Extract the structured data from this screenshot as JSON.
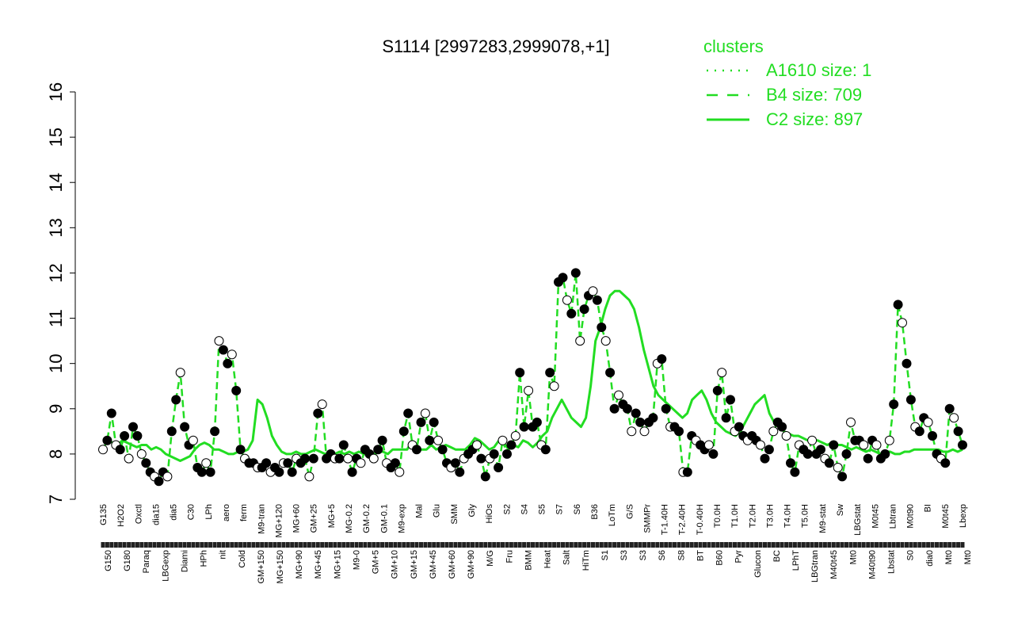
{
  "chart_data": {
    "type": "line",
    "title": "S1114 [2997283,2999078,+1]",
    "xlabel": "",
    "ylabel": "",
    "ylim": [
      7,
      16
    ],
    "yticks": [
      7,
      8,
      9,
      10,
      11,
      12,
      13,
      14,
      15,
      16
    ],
    "legend": {
      "title": "clusters",
      "placement": "top-right",
      "entries": [
        {
          "label": "A1610 size: 1",
          "style": "dotted"
        },
        {
          "label": "B4 size: 709",
          "style": "dashed"
        },
        {
          "label": "C2 size: 897",
          "style": "solid"
        }
      ]
    },
    "x_tick_labels_upper": [
      "G135",
      "H2O2",
      "Oxctl",
      "dia15",
      "dia5",
      "C30",
      "LPh",
      "aero",
      "ferm",
      "M9-tran",
      "MG+120",
      "MG+60",
      "GM+25",
      "MG+5",
      "MG-0.2",
      "GM-0.2",
      "GM-0.1",
      "M9-exp",
      "Mal",
      "Glu",
      "SMM",
      "Gly",
      "HiOs",
      "S2",
      "S4",
      "S5",
      "S7",
      "S6",
      "B36",
      "LoTm",
      "G/S",
      "SMMPr",
      "T-1.40H",
      "T-2.40H",
      "T-0.40H",
      "T0.0H",
      "T1.0H",
      "T2.0H",
      "T3.0H",
      "T4.0H",
      "T5.0H",
      "M9-stat",
      "Sw",
      "LBGstat",
      "M0t45",
      "Lbtran",
      "M0t90",
      "BI",
      "M0t45",
      "Lbexp"
    ],
    "x_tick_labels_lower": [
      "G150",
      "G180",
      "Paraq",
      "LBGexp",
      "Diami",
      "HPh",
      "nit",
      "Cold",
      "GM+150",
      "MG+150",
      "MG+90",
      "MG+45",
      "MG+15",
      "M9-0",
      "GM+5",
      "GM+10",
      "GM+15",
      "GM+45",
      "GM+60",
      "GM+90",
      "M/G",
      "Fru",
      "BMM",
      "Heat",
      "Salt",
      "HiTm",
      "S1",
      "S3",
      "S3",
      "S6",
      "S8",
      "BT",
      "B60",
      "Pyr",
      "Glucon",
      "BC",
      "LPhT",
      "LBGtran",
      "M40t45",
      "Mt0",
      "M40t90",
      "Lbstat",
      "S0",
      "dia0",
      "Mt0",
      "Mt0"
    ],
    "series": [
      {
        "name": "C2 size: 897",
        "style": "solid",
        "color": "#22dd22",
        "values": [
          8.3,
          8.3,
          8.25,
          8.2,
          8.3,
          8.25,
          8.2,
          8.15,
          8.2,
          8.2,
          8.1,
          8.15,
          8.1,
          8.0,
          7.95,
          7.9,
          7.85,
          7.9,
          7.95,
          8.1,
          8.2,
          8.25,
          8.2,
          8.1,
          8.1,
          8.05,
          8.0,
          8.0,
          8.05,
          8.05,
          8.1,
          8.3,
          9.2,
          9.1,
          8.8,
          8.4,
          8.2,
          8.05,
          8.0,
          8.0,
          8.05,
          8.0,
          8.0,
          8.05,
          8.1,
          8.05,
          8.0,
          8.05,
          8.0,
          8.05,
          8.0,
          8.05,
          8.0,
          8.05,
          8.0,
          8.0,
          8.0,
          8.05,
          8.05,
          8.0,
          8.1,
          8.1,
          8.1,
          8.1,
          8.3,
          8.1,
          8.1,
          8.1,
          8.2,
          8.1,
          8.15,
          8.2,
          8.15,
          8.1,
          8.1,
          8.1,
          8.2,
          8.35,
          8.3,
          8.2,
          8.1,
          8.15,
          8.3,
          8.25,
          8.1,
          8.2,
          8.15,
          8.3,
          8.25,
          8.15,
          8.25,
          8.4,
          8.5,
          8.8,
          9.0,
          9.2,
          9.0,
          8.8,
          8.7,
          8.6,
          8.8,
          9.5,
          10.5,
          10.8,
          11.2,
          11.5,
          11.6,
          11.6,
          11.5,
          11.4,
          11.2,
          10.8,
          10.3,
          9.9,
          9.5,
          9.3,
          9.2,
          9.1,
          9.0,
          8.9,
          8.8,
          8.9,
          9.2,
          9.3,
          9.4,
          9.2,
          8.9,
          8.7,
          8.6,
          8.5,
          8.45,
          8.4,
          8.5,
          8.7,
          8.9,
          9.1,
          9.2,
          9.3,
          8.9,
          8.7,
          8.6,
          8.5,
          8.45,
          8.4,
          8.4,
          8.35,
          8.3,
          8.3,
          8.3,
          8.25,
          8.2,
          8.25,
          8.2,
          8.2,
          8.15,
          8.1,
          8.15,
          8.1,
          8.05,
          8.1,
          8.05,
          8.0,
          8.05,
          8.05,
          8.0,
          8.0,
          8.05,
          8.05,
          8.1,
          8.1,
          8.1,
          8.1,
          8.1,
          8.1,
          8.05,
          8.05,
          8.1,
          8.05,
          8.1
        ]
      },
      {
        "name": "B4 size: 709",
        "style": "dashed",
        "color": "#22dd22",
        "values": [
          8.1,
          8.3,
          8.9,
          8.2,
          8.1,
          8.4,
          7.9,
          8.6,
          8.4,
          8.0,
          7.8,
          7.6,
          7.5,
          7.4,
          7.6,
          7.5,
          8.5,
          9.2,
          9.8,
          8.6,
          8.2,
          8.3,
          7.7,
          7.6,
          7.8,
          7.6,
          8.5,
          10.5,
          10.3,
          10.0,
          10.2,
          9.4,
          8.1,
          7.9,
          7.8,
          7.8,
          7.7,
          7.7,
          7.8,
          7.6,
          7.7,
          7.6,
          7.8,
          7.8,
          7.6,
          7.9,
          7.8,
          7.9,
          7.5,
          7.9,
          8.9,
          9.1,
          7.9,
          8.0,
          7.9,
          7.9,
          8.2,
          7.9,
          7.6,
          7.9,
          7.8,
          8.1,
          8.0,
          7.9,
          8.1,
          8.3,
          7.8,
          7.7,
          7.8,
          7.6,
          8.5,
          8.9,
          8.2,
          8.1,
          8.7,
          8.9,
          8.3,
          8.7,
          8.3,
          8.1,
          7.8,
          7.7,
          7.8,
          7.6,
          7.9,
          8.0,
          8.1,
          8.2,
          7.9,
          7.5,
          7.9,
          8.0,
          7.7,
          8.3,
          8.0,
          8.2,
          8.4,
          9.8,
          8.6,
          9.4,
          8.6,
          8.7,
          8.2,
          8.1,
          9.8,
          9.5,
          11.8,
          11.9,
          11.4,
          11.1,
          12.0,
          10.5,
          11.2,
          11.5,
          11.6,
          11.4,
          10.8,
          10.5,
          9.8,
          9.0,
          9.3,
          9.1,
          9.0,
          8.5,
          8.9,
          8.7,
          8.5,
          8.7,
          8.8,
          10.0,
          10.1,
          9.0,
          8.6,
          8.6,
          8.5,
          7.6,
          7.6,
          8.4,
          8.3,
          8.2,
          8.1,
          8.2,
          8.0,
          9.4,
          9.8,
          8.8,
          9.2,
          8.5,
          8.6,
          8.4,
          8.3,
          8.4,
          8.3,
          8.2,
          7.9,
          8.1,
          8.5,
          8.7,
          8.6,
          8.4,
          7.8,
          7.6,
          8.2,
          8.1,
          8.0,
          8.3,
          8.0,
          8.1,
          7.9,
          7.8,
          8.2,
          7.7,
          7.5,
          8.0,
          8.7,
          8.3,
          8.3,
          8.2,
          7.9,
          8.3,
          8.2,
          7.9,
          8.0,
          8.3,
          9.1,
          11.3,
          10.9,
          10.0,
          9.2,
          8.6,
          8.5,
          8.8,
          8.7,
          8.4,
          8.0,
          7.9,
          7.8,
          9.0,
          8.8,
          8.5,
          8.2
        ]
      }
    ]
  }
}
